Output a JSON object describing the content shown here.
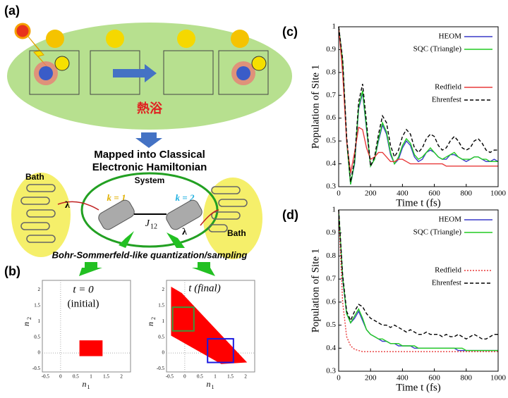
{
  "panel_a": {
    "label": "(a)",
    "bath_jp": "熱浴",
    "title_1": "Mapped into Classical",
    "title_2": "Electronic Hamiltonian",
    "bath_left": "Bath",
    "bath_right": "Bath",
    "system": "System",
    "k1": "k = 1",
    "k2": "k = 2",
    "coupling": "J",
    "coupling_sub": "12",
    "lambda_left": "λ",
    "lambda_right": "λ",
    "sampling": "Bohr-Sommerfeld-like quantization/sampling"
  },
  "panel_b": {
    "label": "(b)",
    "left_title_1": "t = 0",
    "left_title_2": "(initial)",
    "right_title": "t (final)",
    "xlabel": "n",
    "xlabel_sub": "1",
    "ylabel": "n",
    "ylabel_sub": "2",
    "ticks": [
      -0.5,
      0,
      0.5,
      1,
      1.5,
      2
    ]
  },
  "chart_data": [
    {
      "type": "line",
      "panel": "(c)",
      "xlabel": "Time t (fs)",
      "ylabel": "Population of Site 1",
      "x": [
        0,
        25,
        50,
        75,
        100,
        125,
        150,
        175,
        200,
        225,
        250,
        275,
        300,
        325,
        350,
        375,
        400,
        425,
        450,
        475,
        500,
        525,
        550,
        575,
        600,
        625,
        650,
        675,
        700,
        725,
        750,
        775,
        800,
        825,
        850,
        875,
        900,
        925,
        950,
        975,
        1000
      ],
      "xlim": [
        0,
        1000
      ],
      "xticks": [
        0,
        200,
        400,
        600,
        800,
        1000
      ],
      "ylim": [
        0.3,
        1
      ],
      "yticks": [
        0.3,
        0.4,
        0.5,
        0.6,
        0.7,
        0.8,
        0.9,
        1
      ],
      "series": [
        {
          "name": "HEOM",
          "color": "#3a3ac8",
          "values": [
            1,
            0.85,
            0.5,
            0.31,
            0.4,
            0.64,
            0.71,
            0.55,
            0.39,
            0.42,
            0.5,
            0.57,
            0.53,
            0.44,
            0.4,
            0.42,
            0.47,
            0.5,
            0.48,
            0.43,
            0.41,
            0.42,
            0.45,
            0.46,
            0.45,
            0.43,
            0.42,
            0.42,
            0.44,
            0.44,
            0.43,
            0.42,
            0.41,
            0.42,
            0.43,
            0.43,
            0.42,
            0.41,
            0.41,
            0.42,
            0.41
          ]
        },
        {
          "name": "SQC (Triangle)",
          "color": "#22cc22",
          "values": [
            1,
            0.85,
            0.5,
            0.31,
            0.41,
            0.65,
            0.72,
            0.56,
            0.39,
            0.42,
            0.51,
            0.58,
            0.54,
            0.45,
            0.4,
            0.43,
            0.48,
            0.51,
            0.49,
            0.44,
            0.42,
            0.43,
            0.45,
            0.47,
            0.45,
            0.43,
            0.42,
            0.43,
            0.44,
            0.45,
            0.43,
            0.42,
            0.42,
            0.42,
            0.43,
            0.43,
            0.42,
            0.42,
            0.41,
            0.41,
            0.41
          ]
        },
        {
          "name": "Redfield",
          "color": "#e83a3a",
          "values": [
            1,
            0.8,
            0.5,
            0.36,
            0.45,
            0.56,
            0.55,
            0.47,
            0.42,
            0.43,
            0.45,
            0.45,
            0.43,
            0.41,
            0.41,
            0.42,
            0.42,
            0.41,
            0.4,
            0.4,
            0.4,
            0.4,
            0.4,
            0.4,
            0.4,
            0.4,
            0.4,
            0.39,
            0.39,
            0.39,
            0.39,
            0.39,
            0.39,
            0.39,
            0.39,
            0.39,
            0.39,
            0.39,
            0.39,
            0.39,
            0.39
          ]
        },
        {
          "name": "Ehrenfest",
          "color": "#000000",
          "dash": "dashed",
          "values": [
            1,
            0.86,
            0.52,
            0.32,
            0.42,
            0.67,
            0.75,
            0.58,
            0.39,
            0.43,
            0.53,
            0.61,
            0.58,
            0.48,
            0.43,
            0.46,
            0.52,
            0.55,
            0.53,
            0.47,
            0.45,
            0.47,
            0.51,
            0.53,
            0.52,
            0.48,
            0.46,
            0.47,
            0.5,
            0.52,
            0.5,
            0.47,
            0.46,
            0.47,
            0.5,
            0.51,
            0.49,
            0.46,
            0.45,
            0.46,
            0.46
          ]
        }
      ]
    },
    {
      "type": "line",
      "panel": "(d)",
      "xlabel": "Time t (fs)",
      "ylabel": "Population of Site 1",
      "x": [
        0,
        25,
        50,
        75,
        100,
        125,
        150,
        175,
        200,
        225,
        250,
        275,
        300,
        325,
        350,
        375,
        400,
        425,
        450,
        475,
        500,
        525,
        550,
        575,
        600,
        625,
        650,
        675,
        700,
        725,
        750,
        775,
        800,
        825,
        850,
        875,
        900,
        925,
        950,
        975,
        1000
      ],
      "xlim": [
        0,
        1000
      ],
      "xticks": [
        0,
        200,
        400,
        600,
        800,
        1000
      ],
      "ylim": [
        0.3,
        1
      ],
      "yticks": [
        0.3,
        0.4,
        0.5,
        0.6,
        0.7,
        0.8,
        0.9,
        1
      ],
      "series": [
        {
          "name": "HEOM",
          "color": "#3a3ac8",
          "values": [
            1,
            0.7,
            0.55,
            0.51,
            0.53,
            0.56,
            0.52,
            0.48,
            0.46,
            0.45,
            0.44,
            0.43,
            0.43,
            0.42,
            0.42,
            0.41,
            0.41,
            0.41,
            0.41,
            0.4,
            0.4,
            0.4,
            0.4,
            0.4,
            0.4,
            0.4,
            0.4,
            0.4,
            0.4,
            0.4,
            0.39,
            0.39,
            0.39,
            0.39,
            0.39,
            0.39,
            0.39,
            0.39,
            0.39,
            0.39,
            0.39
          ]
        },
        {
          "name": "SQC (Triangle)",
          "color": "#22cc22",
          "values": [
            1,
            0.71,
            0.55,
            0.51,
            0.54,
            0.57,
            0.53,
            0.48,
            0.46,
            0.45,
            0.44,
            0.44,
            0.43,
            0.42,
            0.42,
            0.42,
            0.41,
            0.41,
            0.41,
            0.41,
            0.4,
            0.4,
            0.4,
            0.4,
            0.4,
            0.4,
            0.4,
            0.4,
            0.4,
            0.4,
            0.4,
            0.4,
            0.39,
            0.39,
            0.39,
            0.39,
            0.39,
            0.39,
            0.39,
            0.39,
            0.39
          ]
        },
        {
          "name": "Redfield",
          "color": "#e83a3a",
          "dash": "dotted",
          "values": [
            1,
            0.6,
            0.45,
            0.41,
            0.395,
            0.39,
            0.385,
            0.385,
            0.385,
            0.385,
            0.385,
            0.385,
            0.385,
            0.385,
            0.385,
            0.385,
            0.385,
            0.385,
            0.385,
            0.385,
            0.385,
            0.385,
            0.385,
            0.385,
            0.385,
            0.385,
            0.385,
            0.385,
            0.385,
            0.385,
            0.385,
            0.385,
            0.385,
            0.385,
            0.385,
            0.385,
            0.385,
            0.385,
            0.385,
            0.385,
            0.385
          ]
        },
        {
          "name": "Ehrenfest",
          "color": "#000000",
          "dash": "dashed",
          "values": [
            1,
            0.72,
            0.56,
            0.52,
            0.56,
            0.59,
            0.58,
            0.55,
            0.53,
            0.52,
            0.51,
            0.5,
            0.5,
            0.49,
            0.5,
            0.49,
            0.48,
            0.47,
            0.48,
            0.47,
            0.46,
            0.46,
            0.47,
            0.46,
            0.46,
            0.46,
            0.45,
            0.46,
            0.45,
            0.45,
            0.46,
            0.45,
            0.44,
            0.45,
            0.46,
            0.45,
            0.44,
            0.44,
            0.45,
            0.46,
            0.46
          ]
        }
      ]
    }
  ]
}
